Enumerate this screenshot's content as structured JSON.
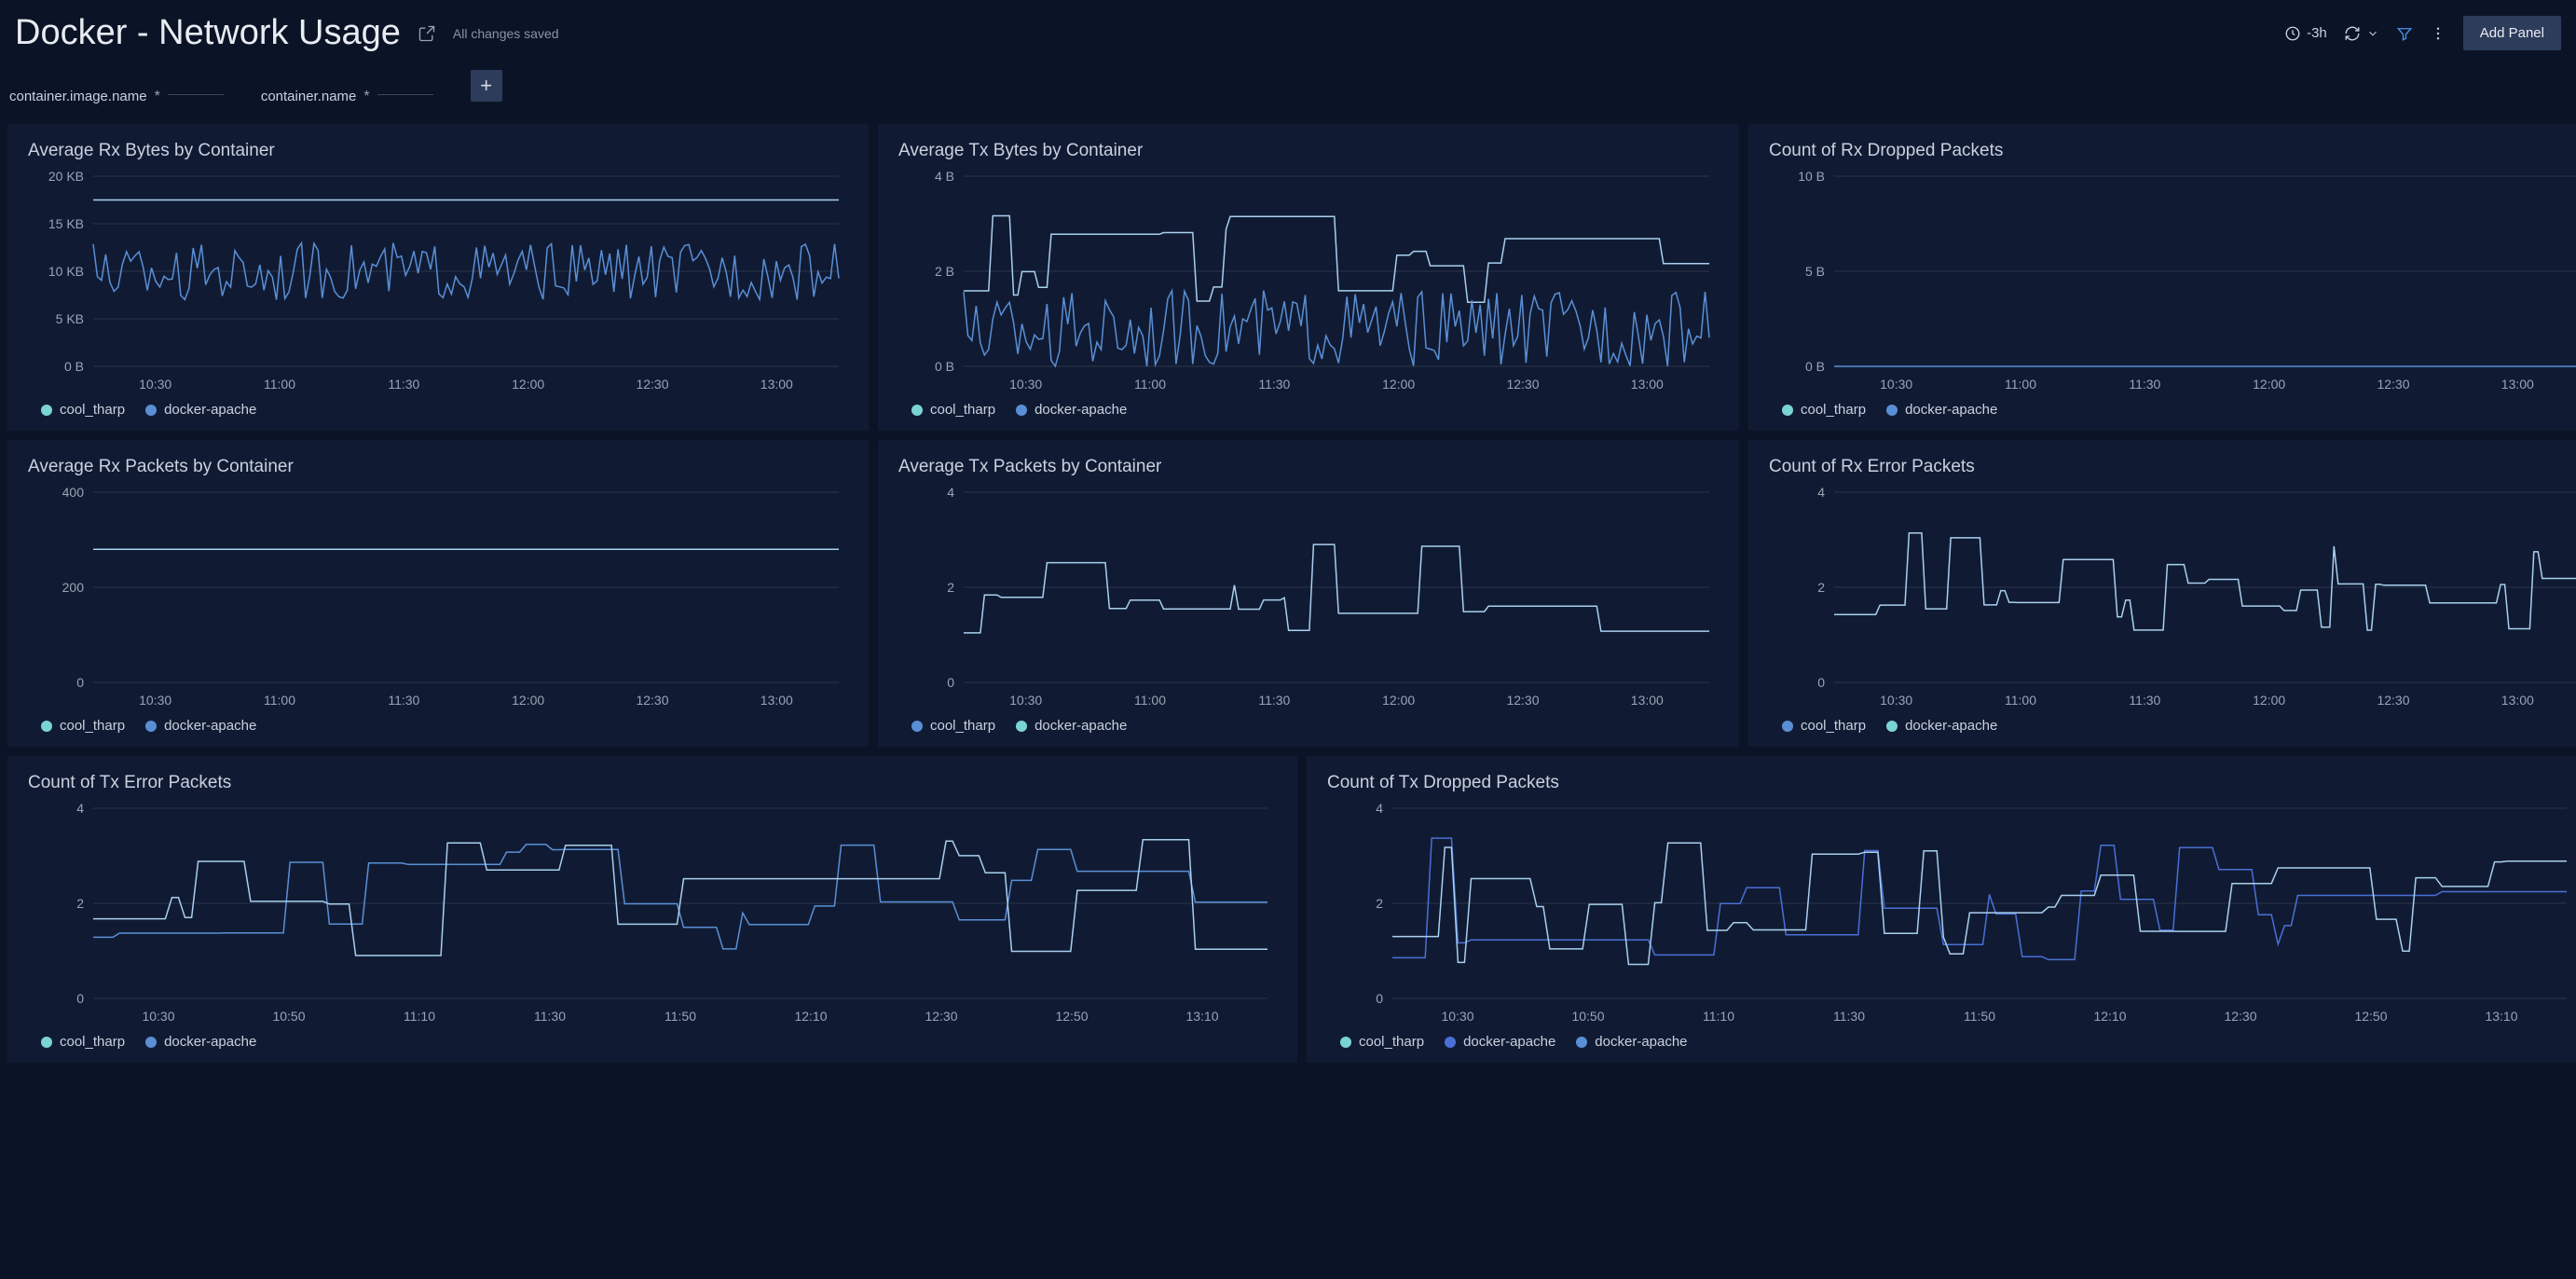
{
  "header": {
    "title": "Docker - Network Usage",
    "save_status": "All changes saved",
    "time_range": "-3h",
    "add_panel_label": "Add Panel"
  },
  "filters": [
    {
      "label": "container.image.name",
      "value": "*"
    },
    {
      "label": "container.name",
      "value": "*"
    }
  ],
  "colors": {
    "bg": "#0b1426",
    "panel_bg": "#101b33",
    "grid_line": "#2a3548",
    "axis_text": "#9aa4b5",
    "teal": "#7bd4d4",
    "light_blue": "#8bb8e8",
    "mid_blue": "#5a8fd6",
    "deep_blue": "#4a6fd6",
    "pale_blue": "#a9cfef"
  },
  "x_ticks_short": [
    "10:30",
    "11:00",
    "11:30",
    "12:00",
    "12:30",
    "13:00"
  ],
  "x_ticks_long": [
    "10:30",
    "10:50",
    "11:10",
    "11:30",
    "11:50",
    "12:10",
    "12:30",
    "12:50",
    "13:10"
  ],
  "panels": {
    "rx_bytes": {
      "title": "Average Rx Bytes by Container",
      "y_ticks": [
        "0 B",
        "5 KB",
        "10 KB",
        "15 KB",
        "20 KB"
      ],
      "y_max": 20,
      "legend": [
        {
          "label": "cool_tharp",
          "color": "#7bd4d4"
        },
        {
          "label": "docker-apache",
          "color": "#5a8fd6"
        }
      ],
      "series": [
        {
          "color": "#a9cfef",
          "type": "flat",
          "value": 17.5
        },
        {
          "color": "#5a8fd6",
          "type": "dense_noise",
          "min": 7,
          "max": 13,
          "period": 2
        }
      ]
    },
    "tx_bytes": {
      "title": "Average Tx Bytes by Container",
      "y_ticks": [
        "0 B",
        "2 B",
        "4 B"
      ],
      "y_max": 4,
      "legend": [
        {
          "label": "cool_tharp",
          "color": "#7bd4d4"
        },
        {
          "label": "docker-apache",
          "color": "#5a8fd6"
        }
      ],
      "series": [
        {
          "color": "#a9cfef",
          "type": "step_noise",
          "min": 1.2,
          "max": 3.2,
          "period": 10
        },
        {
          "color": "#5a8fd6",
          "type": "dense_noise",
          "min": 0,
          "max": 1.6,
          "period": 2
        }
      ]
    },
    "rx_dropped": {
      "title": "Count of Rx Dropped Packets",
      "y_ticks": [
        "0 B",
        "5 B",
        "10 B"
      ],
      "y_max": 10,
      "legend": [
        {
          "label": "cool_tharp",
          "color": "#7bd4d4"
        },
        {
          "label": "docker-apache",
          "color": "#5a8fd6"
        }
      ],
      "series": [
        {
          "color": "#5a8fd6",
          "type": "flat",
          "value": 0
        }
      ]
    },
    "rx_packets": {
      "title": "Average Rx Packets by Container",
      "y_ticks": [
        "0",
        "200",
        "400"
      ],
      "y_max": 400,
      "legend": [
        {
          "label": "cool_tharp",
          "color": "#7bd4d4"
        },
        {
          "label": "docker-apache",
          "color": "#5a8fd6"
        }
      ],
      "series": [
        {
          "color": "#a9cfef",
          "type": "flat",
          "value": 280
        }
      ]
    },
    "tx_packets": {
      "title": "Average Tx Packets by Container",
      "y_ticks": [
        "0",
        "2",
        "4"
      ],
      "y_max": 4,
      "legend": [
        {
          "label": "cool_tharp",
          "color": "#5a8fd6"
        },
        {
          "label": "docker-apache",
          "color": "#7bd4d4"
        }
      ],
      "series": [
        {
          "color": "#a9cfef",
          "type": "step_noise",
          "min": 1,
          "max": 3,
          "period": 9
        }
      ]
    },
    "rx_error": {
      "title": "Count of Rx Error Packets",
      "y_ticks": [
        "0",
        "2",
        "4"
      ],
      "y_max": 4,
      "legend": [
        {
          "label": "cool_tharp",
          "color": "#5a8fd6"
        },
        {
          "label": "docker-apache",
          "color": "#7bd4d4"
        }
      ],
      "series": [
        {
          "color": "#a9cfef",
          "type": "step_noise",
          "min": 1,
          "max": 3.2,
          "period": 8
        }
      ]
    },
    "tx_error": {
      "title": "Count of Tx Error Packets",
      "y_ticks": [
        "0",
        "2",
        "4"
      ],
      "y_max": 4,
      "legend": [
        {
          "label": "cool_tharp",
          "color": "#7bd4d4"
        },
        {
          "label": "docker-apache",
          "color": "#5a8fd6"
        }
      ],
      "series": [
        {
          "color": "#5a8fd6",
          "type": "step_noise",
          "min": 0.8,
          "max": 3.3,
          "period": 7
        },
        {
          "color": "#a9cfef",
          "type": "step_noise",
          "min": 0.5,
          "max": 3.4,
          "period": 9
        }
      ]
    },
    "tx_dropped": {
      "title": "Count of Tx Dropped Packets",
      "y_ticks": [
        "0",
        "2",
        "4"
      ],
      "y_max": 4,
      "legend": [
        {
          "label": "cool_tharp",
          "color": "#7bd4d4"
        },
        {
          "label": "docker-apache",
          "color": "#4a6fd6"
        },
        {
          "label": "docker-apache",
          "color": "#5a8fd6"
        }
      ],
      "series": [
        {
          "color": "#4a6fd6",
          "type": "step_noise",
          "min": 0.8,
          "max": 3.4,
          "period": 6
        },
        {
          "color": "#a9cfef",
          "type": "step_noise",
          "min": 0.7,
          "max": 3.3,
          "period": 8
        }
      ]
    }
  }
}
